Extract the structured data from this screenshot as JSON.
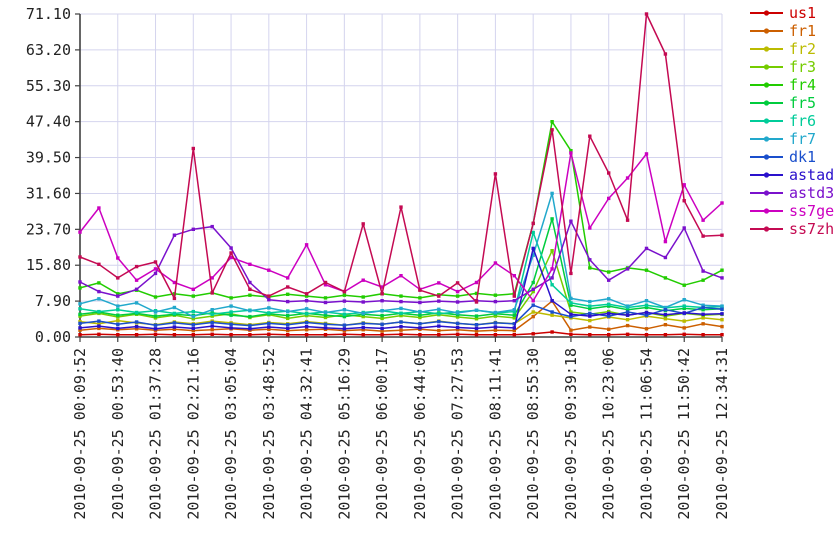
{
  "chart_data": {
    "type": "line",
    "title": "",
    "xlabel": "",
    "ylabel": "",
    "ylim": [
      0,
      71.1
    ],
    "ytick_labels": [
      "0.00",
      "7.90",
      "15.80",
      "23.70",
      "31.60",
      "39.50",
      "47.40",
      "55.30",
      "63.20",
      "71.10"
    ],
    "ytick_values": [
      0.0,
      7.9,
      15.8,
      23.7,
      31.6,
      39.5,
      47.4,
      55.3,
      63.2,
      71.1
    ],
    "x_tick_labels": [
      "2010-09-25 00:09:52",
      "2010-09-25 00:53:40",
      "2010-09-25 01:37:28",
      "2010-09-25 02:21:16",
      "2010-09-25 03:05:04",
      "2010-09-25 03:48:52",
      "2010-09-25 04:32:41",
      "2010-09-25 05:16:29",
      "2010-09-25 06:00:17",
      "2010-09-25 06:44:05",
      "2010-09-25 07:27:53",
      "2010-09-25 08:11:41",
      "2010-09-25 08:55:30",
      "2010-09-25 09:39:18",
      "2010-09-25 10:23:06",
      "2010-09-25 11:06:54",
      "2010-09-25 11:50:42",
      "2010-09-25 12:34:31"
    ],
    "points_per_tick_interval": 2,
    "grid": true,
    "grid_color": "#d4d4ee",
    "axis_color": "#404040",
    "tick_label_color": "#222222",
    "legend_position": "right",
    "series": [
      {
        "name": "us1",
        "color": "#cc0000",
        "values": [
          0.5,
          0.6,
          0.5,
          0.5,
          0.6,
          0.5,
          0.5,
          0.6,
          0.5,
          0.5,
          0.6,
          0.5,
          0.5,
          0.5,
          0.6,
          0.5,
          0.5,
          0.6,
          0.5,
          0.5,
          0.6,
          0.5,
          0.5,
          0.5,
          0.7,
          1.1,
          0.6,
          0.5,
          0.5,
          0.6,
          0.5,
          0.5,
          0.6,
          0.5,
          0.5
        ]
      },
      {
        "name": "fr1",
        "color": "#cc5f00",
        "values": [
          1.5,
          1.9,
          1.6,
          1.8,
          1.5,
          1.7,
          1.4,
          1.6,
          1.8,
          1.5,
          1.7,
          1.4,
          1.6,
          1.7,
          1.4,
          1.6,
          1.3,
          1.5,
          1.7,
          1.4,
          1.6,
          1.3,
          1.5,
          1.4,
          4.5,
          7.9,
          1.5,
          2.2,
          1.7,
          2.5,
          1.8,
          2.7,
          2.0,
          2.9,
          2.3
        ]
      },
      {
        "name": "fr2",
        "color": "#bbbb00",
        "values": [
          3.4,
          2.9,
          3.6,
          3.1,
          2.7,
          3.3,
          2.9,
          3.5,
          3.1,
          2.7,
          3.2,
          2.9,
          3.4,
          3.0,
          2.6,
          3.1,
          2.8,
          3.3,
          2.9,
          3.5,
          3.0,
          2.7,
          3.2,
          2.9,
          5.5,
          4.8,
          4.2,
          3.6,
          4.4,
          3.8,
          4.6,
          4.0,
          3.5,
          4.2,
          3.8
        ]
      },
      {
        "name": "fr3",
        "color": "#75cc00",
        "values": [
          4.6,
          5.2,
          4.4,
          5.0,
          4.2,
          4.8,
          4.0,
          4.6,
          5.1,
          4.3,
          4.9,
          4.1,
          4.7,
          4.3,
          4.9,
          4.5,
          4.1,
          4.7,
          4.3,
          4.9,
          4.4,
          4.0,
          4.6,
          4.2,
          10.0,
          19.0,
          5.5,
          5.0,
          5.6,
          4.8,
          5.4,
          4.6,
          5.2,
          4.8,
          5.0
        ]
      },
      {
        "name": "fr4",
        "color": "#22cc00",
        "values": [
          10.8,
          11.9,
          9.5,
          10.3,
          8.8,
          9.5,
          9.0,
          9.7,
          8.6,
          9.2,
          8.8,
          9.4,
          9.0,
          8.6,
          9.2,
          8.8,
          9.5,
          9.0,
          8.6,
          9.3,
          9.0,
          9.6,
          9.2,
          9.5,
          25.0,
          47.4,
          41.0,
          15.2,
          14.3,
          15.2,
          14.7,
          13.0,
          11.4,
          12.5,
          14.7
        ]
      },
      {
        "name": "fr5",
        "color": "#00cc3d",
        "values": [
          5.0,
          5.5,
          4.8,
          5.2,
          4.6,
          5.0,
          4.7,
          5.3,
          4.8,
          4.5,
          5.1,
          4.7,
          5.2,
          4.8,
          4.5,
          5.0,
          4.7,
          5.2,
          4.8,
          5.3,
          4.9,
          4.6,
          5.1,
          4.8,
          12.0,
          26.0,
          7.0,
          6.2,
          6.8,
          6.0,
          6.5,
          5.8,
          6.3,
          6.0,
          6.2
        ]
      },
      {
        "name": "fr6",
        "color": "#00cc99",
        "values": [
          6.2,
          5.6,
          6.0,
          5.4,
          5.8,
          5.2,
          5.6,
          5.0,
          5.5,
          5.9,
          5.3,
          5.7,
          5.1,
          5.5,
          5.0,
          5.4,
          5.8,
          5.2,
          5.6,
          5.1,
          5.5,
          5.9,
          5.3,
          5.6,
          23.0,
          11.5,
          7.5,
          6.8,
          7.2,
          6.5,
          7.0,
          6.4,
          6.8,
          6.5,
          6.7
        ]
      },
      {
        "name": "fr7",
        "color": "#22a8cc",
        "values": [
          7.3,
          8.4,
          6.8,
          7.5,
          5.5,
          6.5,
          4.5,
          6.0,
          6.8,
          5.8,
          6.4,
          5.6,
          6.2,
          5.4,
          6.0,
          5.2,
          5.8,
          6.3,
          5.5,
          6.1,
          5.3,
          5.9,
          5.4,
          6.0,
          18.0,
          31.6,
          8.5,
          7.8,
          8.4,
          6.8,
          8.0,
          6.5,
          8.2,
          7.0,
          6.8
        ]
      },
      {
        "name": "dk1",
        "color": "#1a4fcc",
        "values": [
          3.0,
          3.5,
          2.8,
          3.3,
          2.6,
          3.1,
          2.7,
          3.2,
          2.8,
          2.5,
          3.0,
          2.7,
          3.2,
          2.8,
          2.6,
          3.0,
          2.8,
          3.3,
          2.9,
          3.4,
          3.0,
          2.7,
          3.1,
          2.9,
          7.0,
          5.5,
          4.5,
          5.2,
          4.6,
          5.5,
          4.8,
          6.0,
          5.2,
          6.5,
          6.1
        ]
      },
      {
        "name": "astad",
        "color": "#2a11cc",
        "values": [
          2.0,
          2.4,
          1.9,
          2.3,
          1.8,
          2.2,
          1.9,
          2.4,
          2.0,
          1.8,
          2.2,
          1.9,
          2.3,
          2.0,
          1.8,
          2.1,
          1.9,
          2.3,
          2.0,
          2.4,
          2.1,
          1.9,
          2.2,
          2.0,
          19.5,
          8.0,
          5.0,
          4.6,
          5.2,
          4.8,
          5.4,
          4.9,
          5.3,
          5.0,
          5.1
        ]
      },
      {
        "name": "astd3",
        "color": "#7a11cc",
        "values": [
          12.1,
          10.0,
          9.0,
          10.5,
          14.0,
          22.4,
          23.7,
          24.3,
          19.6,
          12.0,
          8.2,
          7.8,
          8.0,
          7.6,
          7.9,
          7.7,
          8.0,
          7.8,
          7.6,
          7.9,
          7.7,
          8.0,
          7.8,
          8.0,
          10.5,
          13.0,
          25.5,
          17.0,
          12.5,
          15.0,
          19.5,
          17.5,
          24.0,
          14.5,
          13.0
        ]
      },
      {
        "name": "ss7ge",
        "color": "#cc00c0",
        "values": [
          23.1,
          28.4,
          17.4,
          12.5,
          15.0,
          12.0,
          10.5,
          13.0,
          17.5,
          16.0,
          14.7,
          13.0,
          20.3,
          11.5,
          10.0,
          12.5,
          11.0,
          13.5,
          10.5,
          11.9,
          10.0,
          12.0,
          16.3,
          13.5,
          8.0,
          15.0,
          40.5,
          24.0,
          30.5,
          35.0,
          40.3,
          21.0,
          33.5,
          25.7,
          29.5
        ]
      },
      {
        "name": "ss7zh",
        "color": "#c40a52",
        "values": [
          17.6,
          16.0,
          13.0,
          15.5,
          16.5,
          8.5,
          41.5,
          9.7,
          18.5,
          10.5,
          9.0,
          11.0,
          9.5,
          12.0,
          10.0,
          24.9,
          9.5,
          28.6,
          10.3,
          9.0,
          11.9,
          7.7,
          35.9,
          9.0,
          25.0,
          45.6,
          14.0,
          44.2,
          36.1,
          25.7,
          71.1,
          62.3,
          30.0,
          22.2,
          22.4
        ]
      }
    ]
  }
}
